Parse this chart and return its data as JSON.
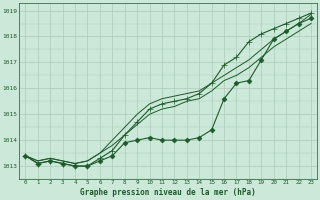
{
  "background_color": "#cce8d8",
  "grid_color": "#aaccb8",
  "line_color": "#1a5c2a",
  "x_labels": [
    "0",
    "1",
    "2",
    "3",
    "4",
    "5",
    "6",
    "7",
    "8",
    "9",
    "10",
    "11",
    "12",
    "13",
    "14",
    "15",
    "16",
    "17",
    "18",
    "19",
    "20",
    "21",
    "22",
    "23"
  ],
  "xlabel": "Graphe pression niveau de la mer (hPa)",
  "ylim": [
    1012.5,
    1019.3
  ],
  "yticks": [
    1013,
    1014,
    1015,
    1016,
    1017,
    1018,
    1019
  ],
  "series": [
    {
      "data": [
        1013.4,
        1013.1,
        1013.2,
        1013.1,
        1013.0,
        1013.0,
        1013.2,
        1013.4,
        1013.9,
        1014.0,
        1014.1,
        1014.0,
        1014.0,
        1014.0,
        1014.1,
        1014.4,
        1015.6,
        1016.2,
        1016.3,
        1017.1,
        1017.9,
        1018.2,
        1018.5,
        1018.7
      ],
      "marker": "D",
      "markersize": 2.5,
      "linewidth": 0.8
    },
    {
      "data": [
        1013.4,
        1013.2,
        1013.3,
        1013.2,
        1013.1,
        1013.2,
        1013.5,
        1013.8,
        1014.2,
        1014.6,
        1015.0,
        1015.2,
        1015.3,
        1015.5,
        1015.6,
        1015.9,
        1016.3,
        1016.5,
        1016.8,
        1017.2,
        1017.6,
        1017.9,
        1018.2,
        1018.5
      ],
      "marker": null,
      "markersize": 0,
      "linewidth": 0.7
    },
    {
      "data": [
        1013.4,
        1013.2,
        1013.3,
        1013.2,
        1013.1,
        1013.2,
        1013.5,
        1014.0,
        1014.5,
        1015.0,
        1015.4,
        1015.6,
        1015.7,
        1015.8,
        1015.9,
        1016.2,
        1016.5,
        1016.8,
        1017.1,
        1017.5,
        1017.9,
        1018.2,
        1018.5,
        1018.85
      ],
      "marker": null,
      "markersize": 0,
      "linewidth": 0.7
    },
    {
      "data": [
        1013.4,
        1013.1,
        1013.2,
        1013.1,
        1013.0,
        1013.0,
        1013.3,
        1013.6,
        1014.2,
        1014.7,
        1015.2,
        1015.4,
        1015.5,
        1015.6,
        1015.8,
        1016.2,
        1016.9,
        1017.2,
        1017.8,
        1018.1,
        1018.3,
        1018.5,
        1018.7,
        1018.9
      ],
      "marker": "+",
      "markersize": 4,
      "linewidth": 0.8
    }
  ]
}
